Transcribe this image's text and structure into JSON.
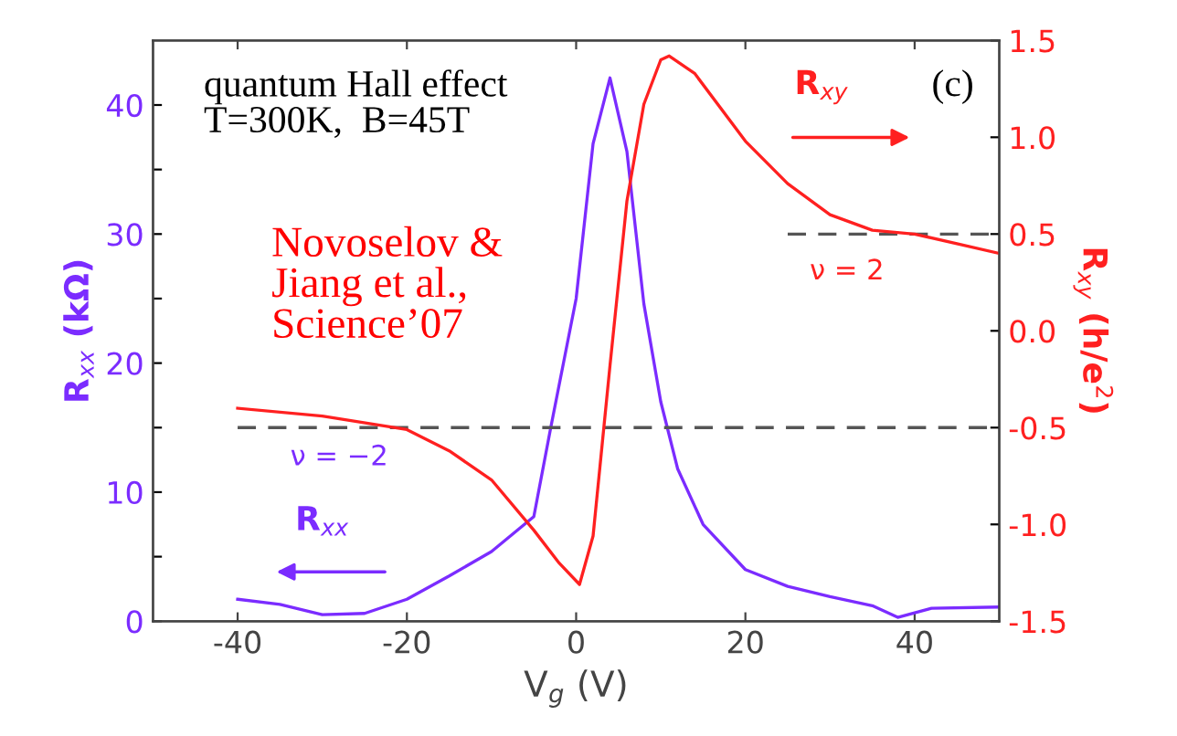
{
  "chart_data": {
    "type": "line",
    "xlabel": "V$_{g}$ (V)",
    "ylabel": "R$_{xx}$ (kΩ)",
    "y2label": "R$_{xy}$ (h/e$^{2}$)",
    "annotations": [
      "quantum Hall effect\nT=300K,  B=45T",
      "(c)",
      "Novoselov &\nJiang et al.,\nScience’07",
      "ν = 2",
      "ν = −2"
    ],
    "series": [
      {
        "name": "R$_{xx}$",
        "color": "#7b2cff",
        "x": [
          -40,
          -35,
          -30,
          -25,
          -20,
          -15,
          -10,
          -5,
          -3,
          0,
          2,
          4,
          6,
          8,
          10,
          12,
          15,
          20,
          25,
          30,
          35,
          38,
          42,
          50
        ],
        "values": [
          1.7,
          1.3,
          0.5,
          0.6,
          1.7,
          3.5,
          5.4,
          8.1,
          15,
          25,
          37,
          42.1,
          36.4,
          24.6,
          17,
          11.8,
          7.5,
          4,
          2.7,
          1.9,
          1.2,
          0.3,
          1.0,
          1.1
        ]
      },
      {
        "name": "R$_{xy}$",
        "color": "#ff2020",
        "axis": "y2",
        "x": [
          -40,
          -30,
          -20,
          -15,
          -10,
          -5,
          -2,
          0.4,
          2,
          4,
          6,
          8,
          10,
          11,
          14,
          20,
          25,
          30,
          35,
          40,
          45,
          50
        ],
        "values": [
          -0.4,
          -0.44,
          -0.51,
          -0.62,
          -0.77,
          -1.03,
          -1.2,
          -1.31,
          -1.06,
          -0.18,
          0.67,
          1.17,
          1.4,
          1.42,
          1.33,
          0.98,
          0.76,
          0.6,
          0.52,
          0.5,
          0.45,
          0.4
        ]
      }
    ],
    "xlim": [
      -50,
      50
    ],
    "xticks": [
      {
        "value": -40,
        "label": "-40"
      },
      {
        "value": -20,
        "label": "-20"
      },
      0,
      20,
      40
    ],
    "ylim": [
      0,
      45
    ],
    "yticks": [
      0,
      {
        "value": 5,
        "label": null
      },
      10,
      {
        "value": 15,
        "label": null
      },
      20,
      {
        "value": 25,
        "label": null
      },
      30,
      {
        "value": 35,
        "label": null
      },
      40
    ],
    "y2lim": [
      -1.5,
      1.5
    ],
    "y2ticks": [
      {
        "value": -1.5,
        "label": "-1.5"
      },
      {
        "value": -1.0,
        "label": "-1.0"
      },
      {
        "value": -0.5,
        "label": "-0.5"
      },
      {
        "value": 0,
        "label": "0.0"
      },
      0.5,
      {
        "value": 1.0,
        "label": "1.0"
      },
      1.5
    ],
    "ref_lines": [
      {
        "axis": "y2",
        "value": 0.5,
        "color": "#555555",
        "line_style": "dashed"
      },
      {
        "axis": "y2",
        "value": -0.5,
        "color": "#555555",
        "line_style": "dashed"
      }
    ],
    "grid": false,
    "marker": "none",
    "line_style": "solid"
  }
}
